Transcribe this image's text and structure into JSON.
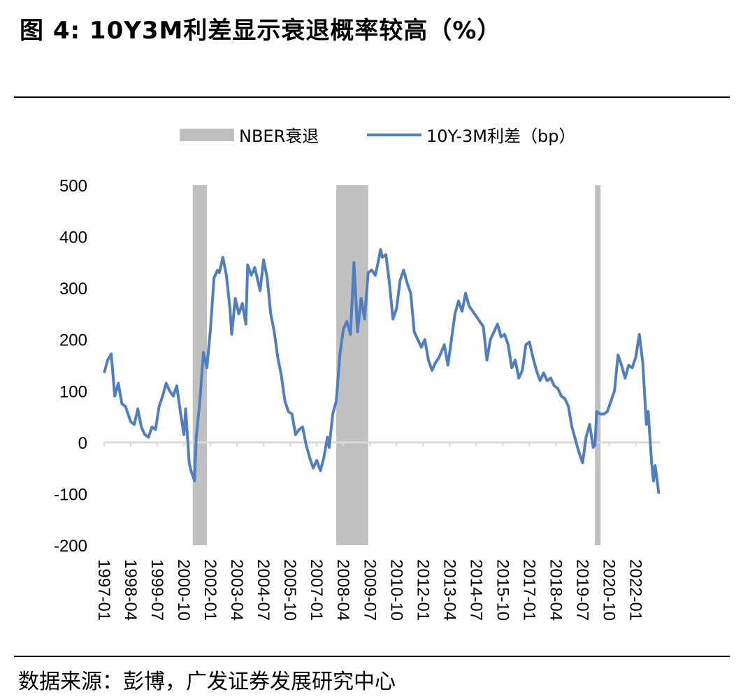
{
  "header": {
    "title": "图 4: 10Y3M利差显示衰退概率较高（%）"
  },
  "footer": {
    "source": "数据来源：彭博，广发证券发展研究中心"
  },
  "chart_data": {
    "type": "line",
    "title": "图 4: 10Y3M利差显示衰退概率较高（%）",
    "xlabel": "",
    "ylabel": "",
    "ylim": [
      -200,
      500
    ],
    "yticks": [
      500,
      400,
      300,
      200,
      100,
      0,
      -100,
      -200
    ],
    "xrange": [
      "1997-01",
      "2023-03"
    ],
    "xtick_labels": [
      "1997-01",
      "1998-04",
      "1999-07",
      "2000-10",
      "2002-01",
      "2003-04",
      "2004-07",
      "2005-10",
      "2007-01",
      "2008-04",
      "2009-07",
      "2010-10",
      "2012-01",
      "2013-04",
      "2014-07",
      "2015-10",
      "2017-01",
      "2018-04",
      "2019-07",
      "2020-10",
      "2022-01"
    ],
    "legend": {
      "position": "top",
      "recession_label": "NBER衰退",
      "line_label": "10Y-3M利差（bp）"
    },
    "colors": {
      "line": "#4f7fc0",
      "recession": "#c0c0c0",
      "zero_line": "#d9d9d9"
    },
    "recessions": [
      {
        "start": "2001-03",
        "end": "2001-11"
      },
      {
        "start": "2007-12",
        "end": "2009-06"
      },
      {
        "start": "2020-02",
        "end": "2020-04"
      }
    ],
    "series": [
      {
        "name": "10Y-3M利差（bp）",
        "points": [
          [
            "1997-01",
            135
          ],
          [
            "1997-03",
            160
          ],
          [
            "1997-05",
            172
          ],
          [
            "1997-07",
            90
          ],
          [
            "1997-09",
            115
          ],
          [
            "1997-11",
            75
          ],
          [
            "1998-01",
            70
          ],
          [
            "1998-04",
            40
          ],
          [
            "1998-06",
            35
          ],
          [
            "1998-08",
            65
          ],
          [
            "1998-10",
            30
          ],
          [
            "1998-12",
            15
          ],
          [
            "1999-02",
            10
          ],
          [
            "1999-04",
            30
          ],
          [
            "1999-06",
            25
          ],
          [
            "1999-08",
            70
          ],
          [
            "1999-10",
            90
          ],
          [
            "1999-12",
            115
          ],
          [
            "2000-02",
            100
          ],
          [
            "2000-04",
            90
          ],
          [
            "2000-06",
            110
          ],
          [
            "2000-08",
            60
          ],
          [
            "2000-10",
            15
          ],
          [
            "2000-11",
            65
          ],
          [
            "2001-01",
            -40
          ],
          [
            "2001-02",
            -55
          ],
          [
            "2001-03",
            -65
          ],
          [
            "2001-04",
            -75
          ],
          [
            "2001-05",
            10
          ],
          [
            "2001-07",
            80
          ],
          [
            "2001-09",
            175
          ],
          [
            "2001-11",
            145
          ],
          [
            "2002-01",
            220
          ],
          [
            "2002-03",
            320
          ],
          [
            "2002-05",
            335
          ],
          [
            "2002-06",
            330
          ],
          [
            "2002-08",
            360
          ],
          [
            "2002-10",
            325
          ],
          [
            "2002-12",
            260
          ],
          [
            "2003-01",
            210
          ],
          [
            "2003-03",
            280
          ],
          [
            "2003-05",
            250
          ],
          [
            "2003-07",
            270
          ],
          [
            "2003-09",
            230
          ],
          [
            "2003-10",
            345
          ],
          [
            "2003-12",
            325
          ],
          [
            "2004-02",
            340
          ],
          [
            "2004-05",
            295
          ],
          [
            "2004-07",
            355
          ],
          [
            "2004-09",
            320
          ],
          [
            "2004-11",
            250
          ],
          [
            "2005-01",
            215
          ],
          [
            "2005-03",
            165
          ],
          [
            "2005-05",
            130
          ],
          [
            "2005-07",
            80
          ],
          [
            "2005-09",
            60
          ],
          [
            "2005-11",
            55
          ],
          [
            "2006-01",
            15
          ],
          [
            "2006-03",
            25
          ],
          [
            "2006-05",
            30
          ],
          [
            "2006-07",
            -5
          ],
          [
            "2006-09",
            -30
          ],
          [
            "2006-11",
            -50
          ],
          [
            "2007-01",
            -35
          ],
          [
            "2007-03",
            -55
          ],
          [
            "2007-05",
            -30
          ],
          [
            "2007-07",
            10
          ],
          [
            "2007-08",
            -10
          ],
          [
            "2007-10",
            55
          ],
          [
            "2007-12",
            80
          ],
          [
            "2008-02",
            170
          ],
          [
            "2008-04",
            220
          ],
          [
            "2008-06",
            235
          ],
          [
            "2008-08",
            210
          ],
          [
            "2008-10",
            350
          ],
          [
            "2008-12",
            215
          ],
          [
            "2009-02",
            280
          ],
          [
            "2009-04",
            240
          ],
          [
            "2009-06",
            330
          ],
          [
            "2009-08",
            335
          ],
          [
            "2009-10",
            325
          ],
          [
            "2009-11",
            340
          ],
          [
            "2010-01",
            375
          ],
          [
            "2010-02",
            360
          ],
          [
            "2010-04",
            365
          ],
          [
            "2010-06",
            310
          ],
          [
            "2010-08",
            240
          ],
          [
            "2010-10",
            260
          ],
          [
            "2010-12",
            315
          ],
          [
            "2011-02",
            335
          ],
          [
            "2011-04",
            310
          ],
          [
            "2011-06",
            290
          ],
          [
            "2011-08",
            215
          ],
          [
            "2011-10",
            200
          ],
          [
            "2011-12",
            185
          ],
          [
            "2012-02",
            200
          ],
          [
            "2012-04",
            160
          ],
          [
            "2012-06",
            140
          ],
          [
            "2012-08",
            155
          ],
          [
            "2012-10",
            165
          ],
          [
            "2013-01",
            190
          ],
          [
            "2013-03",
            150
          ],
          [
            "2013-05",
            200
          ],
          [
            "2013-07",
            250
          ],
          [
            "2013-09",
            275
          ],
          [
            "2013-11",
            255
          ],
          [
            "2014-01",
            290
          ],
          [
            "2014-03",
            265
          ],
          [
            "2014-05",
            255
          ],
          [
            "2014-07",
            245
          ],
          [
            "2014-09",
            235
          ],
          [
            "2014-11",
            225
          ],
          [
            "2015-01",
            160
          ],
          [
            "2015-03",
            200
          ],
          [
            "2015-05",
            215
          ],
          [
            "2015-07",
            230
          ],
          [
            "2015-09",
            205
          ],
          [
            "2015-11",
            210
          ],
          [
            "2016-01",
            190
          ],
          [
            "2016-03",
            145
          ],
          [
            "2016-05",
            160
          ],
          [
            "2016-07",
            125
          ],
          [
            "2016-09",
            140
          ],
          [
            "2016-11",
            190
          ],
          [
            "2017-01",
            195
          ],
          [
            "2017-03",
            165
          ],
          [
            "2017-05",
            140
          ],
          [
            "2017-07",
            120
          ],
          [
            "2017-09",
            135
          ],
          [
            "2017-11",
            120
          ],
          [
            "2018-01",
            125
          ],
          [
            "2018-03",
            110
          ],
          [
            "2018-05",
            105
          ],
          [
            "2018-07",
            90
          ],
          [
            "2018-09",
            85
          ],
          [
            "2018-11",
            70
          ],
          [
            "2019-01",
            30
          ],
          [
            "2019-03",
            5
          ],
          [
            "2019-05",
            -20
          ],
          [
            "2019-07",
            -40
          ],
          [
            "2019-09",
            10
          ],
          [
            "2019-11",
            35
          ],
          [
            "2020-01",
            -10
          ],
          [
            "2020-02",
            -5
          ],
          [
            "2020-03",
            60
          ],
          [
            "2020-05",
            55
          ],
          [
            "2020-07",
            55
          ],
          [
            "2020-09",
            60
          ],
          [
            "2020-11",
            80
          ],
          [
            "2021-01",
            100
          ],
          [
            "2021-03",
            170
          ],
          [
            "2021-05",
            150
          ],
          [
            "2021-07",
            125
          ],
          [
            "2021-09",
            150
          ],
          [
            "2021-11",
            145
          ],
          [
            "2022-01",
            165
          ],
          [
            "2022-03",
            210
          ],
          [
            "2022-05",
            155
          ],
          [
            "2022-07",
            35
          ],
          [
            "2022-08",
            60
          ],
          [
            "2022-10",
            -40
          ],
          [
            "2022-11",
            -75
          ],
          [
            "2022-12",
            -45
          ],
          [
            "2023-02",
            -100
          ]
        ]
      }
    ]
  }
}
